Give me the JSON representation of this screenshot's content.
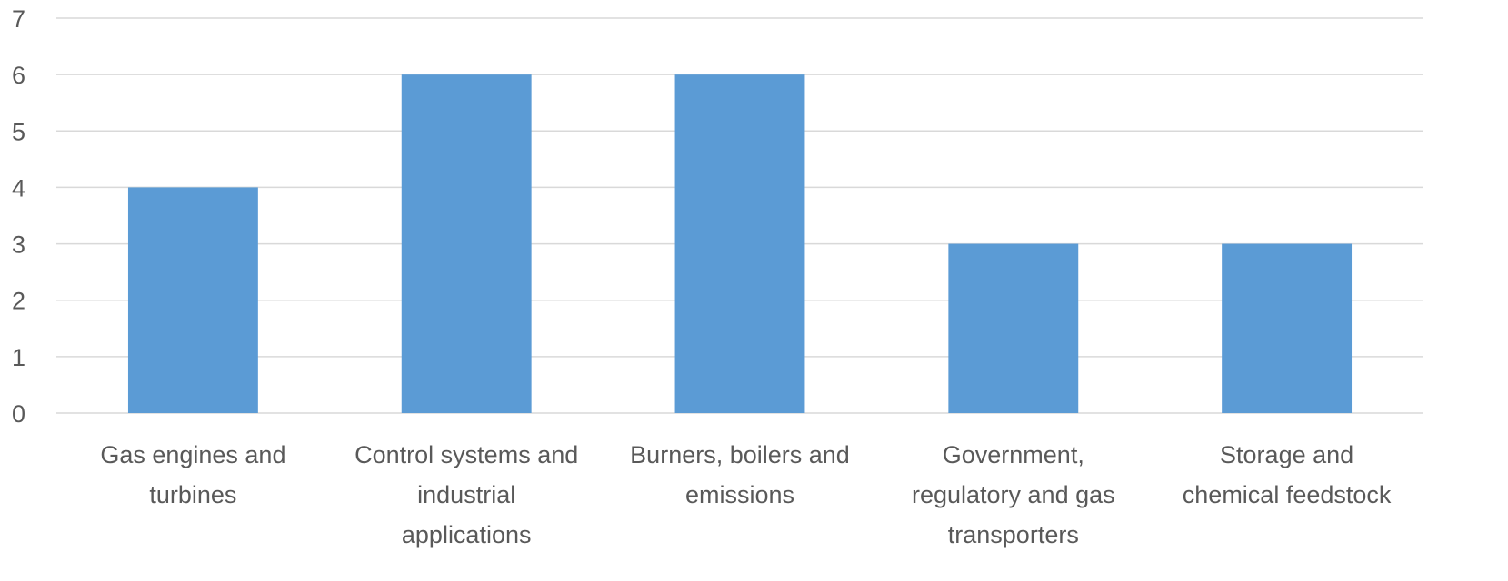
{
  "chart_data": {
    "type": "bar",
    "categories": [
      [
        "Gas engines and",
        "turbines"
      ],
      [
        "Control systems and",
        "industrial",
        "applications"
      ],
      [
        "Burners, boilers and",
        "emissions"
      ],
      [
        "Government,",
        "regulatory and gas",
        "transporters"
      ],
      [
        "Storage and",
        "chemical feedstock"
      ]
    ],
    "values": [
      4,
      6,
      6,
      3,
      3
    ],
    "yticks": [
      "0",
      "1",
      "2",
      "3",
      "4",
      "5",
      "6",
      "7"
    ],
    "ylim": [
      0,
      7
    ],
    "grid": true,
    "bar_color": "#5b9bd5",
    "grid_color": "#d9d9d9",
    "text_color": "#595959"
  }
}
